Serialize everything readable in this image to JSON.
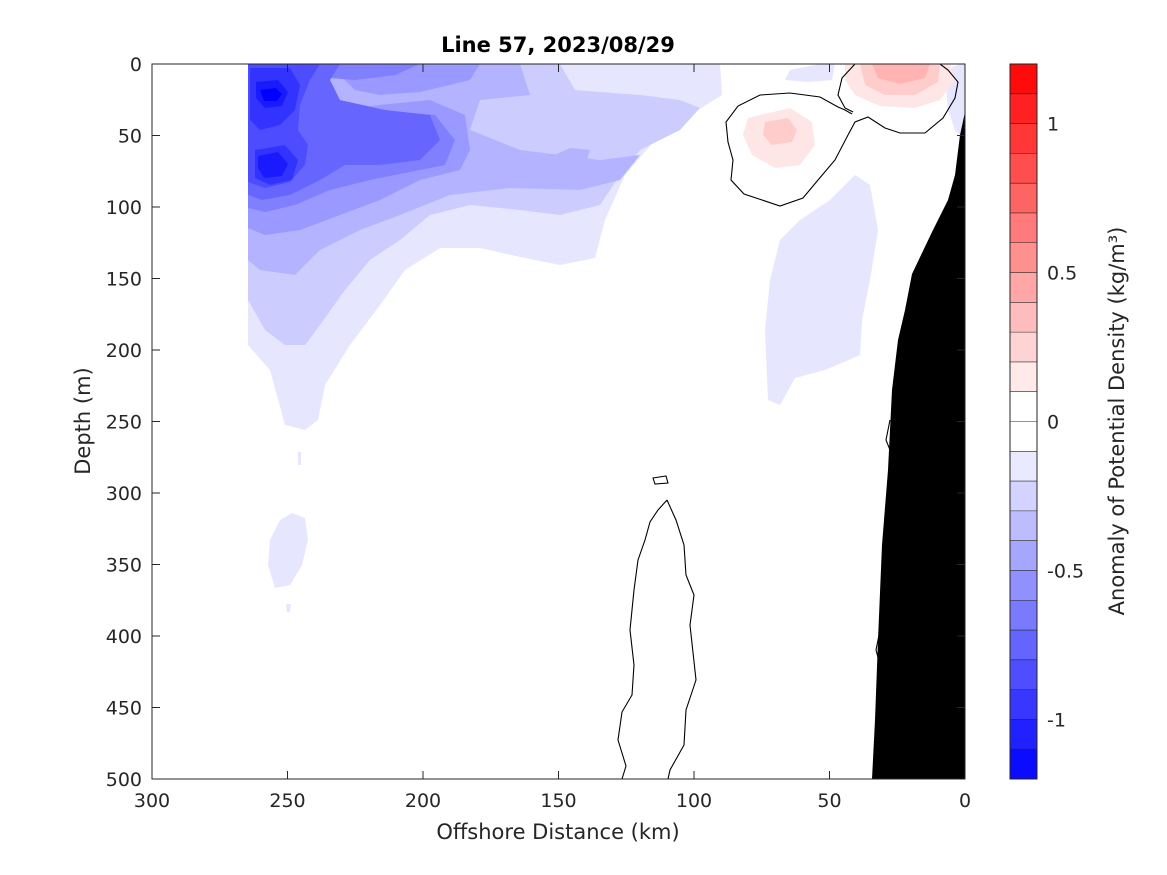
{
  "chart_data": {
    "type": "contour",
    "title": "Line 57, 2023/08/29",
    "xlabel": "Offshore Distance (km)",
    "ylabel": "Depth (m)",
    "colorbar_label": "Anomaly of Potential Density (kg/m³)",
    "xlim": [
      300,
      0
    ],
    "ylim": [
      500,
      0
    ],
    "x_reversed": true,
    "y_reversed": true,
    "x_ticks": [
      300,
      250,
      200,
      150,
      100,
      50,
      0
    ],
    "y_ticks": [
      0,
      50,
      100,
      150,
      200,
      250,
      300,
      350,
      400,
      450,
      500
    ],
    "colorbar_range": [
      -1.2,
      1.2
    ],
    "colorbar_levels": 24,
    "colorbar_ticks": [
      1,
      0.5,
      0,
      -0.5,
      -1
    ],
    "colors": {
      "negative": "#0000ff",
      "positive": "#ff0000",
      "neutral": "#ffffff",
      "bathymetry": "#000000",
      "zero_contour": "#000000"
    },
    "features": [
      {
        "name": "strong-negative-core-shallow",
        "x_km": 250,
        "depth_m": 20,
        "anomaly": -1.0
      },
      {
        "name": "strong-negative-core-deep",
        "x_km": 250,
        "depth_m": 70,
        "anomaly": -0.9
      },
      {
        "name": "negative-core-offshore",
        "x_km": 215,
        "depth_m": 45,
        "anomaly": -0.7
      },
      {
        "name": "weak-negative-lens",
        "x_km": 145,
        "depth_m": 65,
        "anomaly": -0.3
      },
      {
        "name": "negative-tongue-deep",
        "x_km": 240,
        "depth_m": 340,
        "anomaly": -0.1
      },
      {
        "name": "nearshore-negative-column",
        "x_km": 60,
        "depth_m": 200,
        "anomaly": -0.1
      },
      {
        "name": "positive-core-surface",
        "x_km": 23,
        "depth_m": 8,
        "anomaly": 0.3
      },
      {
        "name": "positive-core-subsurface",
        "x_km": 68,
        "depth_m": 45,
        "anomaly": 0.2
      }
    ]
  }
}
